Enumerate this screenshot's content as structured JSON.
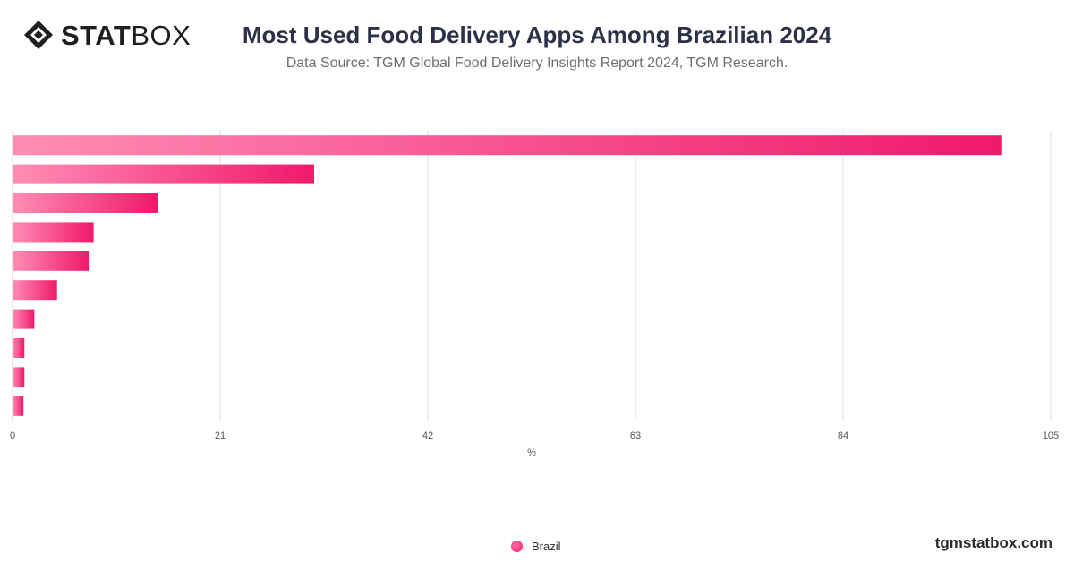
{
  "header": {
    "logo_bold": "STAT",
    "logo_light": "BOX",
    "title": "Most Used Food Delivery Apps Among Brazilian 2024",
    "subtitle": "Data Source: TGM Global Food Delivery Insights Report 2024, TGM Research."
  },
  "chart_data": {
    "type": "bar",
    "orientation": "horizontal",
    "categories": [
      "",
      "",
      "",
      "",
      "",
      "",
      "",
      "",
      "",
      ""
    ],
    "series": [
      {
        "name": "Brazil",
        "values": [
          100,
          30.5,
          14.7,
          8.2,
          7.7,
          4.5,
          2.2,
          1.2,
          1.2,
          1.1
        ]
      }
    ],
    "xlabel": "%",
    "xlim": [
      0,
      105
    ],
    "xticks": [
      0,
      21,
      42,
      63,
      84,
      105
    ],
    "grid": true,
    "legend_position": "bottom"
  },
  "legend": {
    "label": "Brazil"
  },
  "footer": {
    "brand": "tgmstatbox.com"
  },
  "colors": {
    "bar_start": "#ff8db5",
    "bar_end": "#f0196a",
    "grid": "#dddddd",
    "title": "#2d3046"
  }
}
